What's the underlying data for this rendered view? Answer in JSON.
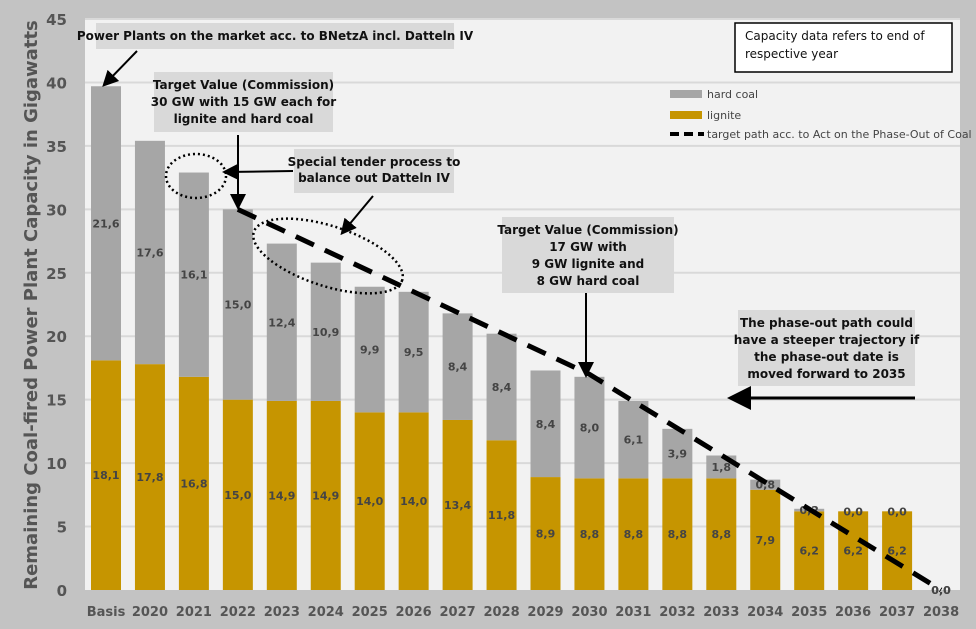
{
  "chart_data": {
    "type": "bar",
    "stacked": true,
    "ylabel": "Remaining Coal-fired Power Plant Capacity in Gigawatts",
    "ylim": [
      0,
      45
    ],
    "yticks": [
      0,
      5,
      10,
      15,
      20,
      25,
      30,
      35,
      40,
      45
    ],
    "grid": true,
    "legend_position": "top-right",
    "categories": [
      "Basis",
      "2020",
      "2021",
      "2022",
      "2023",
      "2024",
      "2025",
      "2026",
      "2027",
      "2028",
      "2029",
      "2030",
      "2031",
      "2032",
      "2033",
      "2034",
      "2035",
      "2036",
      "2037",
      "2038"
    ],
    "series": [
      {
        "name": "lignite",
        "color": "#c69500",
        "values": [
          18.1,
          17.8,
          16.8,
          15.0,
          14.9,
          14.9,
          14.0,
          14.0,
          13.4,
          11.8,
          8.9,
          8.8,
          8.8,
          8.8,
          8.8,
          7.9,
          6.2,
          6.2,
          6.2,
          0.0
        ],
        "labels": [
          "18,1",
          "17,8",
          "16,8",
          "15,0",
          "14,9",
          "14,9",
          "14,0",
          "14,0",
          "13,4",
          "11,8",
          "8,9",
          "8,8",
          "8,8",
          "8,8",
          "8,8",
          "7,9",
          "6,2",
          "6,2",
          "6,2",
          "0,0"
        ]
      },
      {
        "name": "hard coal",
        "color": "#a6a6a6",
        "values": [
          21.6,
          17.6,
          16.1,
          15.0,
          12.4,
          10.9,
          9.9,
          9.5,
          8.4,
          8.4,
          8.4,
          8.0,
          6.1,
          3.9,
          1.8,
          0.8,
          0.2,
          0.0,
          0.0,
          0.0
        ],
        "labels": [
          "21,6",
          "17,6",
          "16,1",
          "15,0",
          "12,4",
          "10,9",
          "9,9",
          "9,5",
          "8,4",
          "8,4",
          "8,4",
          "8,0",
          "6,1",
          "3,9",
          "1,8",
          "0,8",
          "0,2",
          "0,0",
          "0,0",
          "0,0"
        ]
      }
    ],
    "target_path": {
      "name": "target path acc. to Act on the Phase-Out of Coal",
      "points": [
        [
          "2022",
          30
        ],
        [
          "2030",
          17
        ],
        [
          "2038",
          0
        ]
      ]
    },
    "annotations": {
      "note": [
        "Capacity data refers to end of",
        "respective year"
      ],
      "bnetza": [
        "Power Plants on the market acc. to BNetzA incl. Datteln IV"
      ],
      "target30": [
        "Target Value (Commission)",
        "30 GW with 15 GW each for",
        "lignite and hard coal"
      ],
      "tender": [
        "Special tender process to",
        "balance out Datteln IV"
      ],
      "target17": [
        "Target Value (Commission)",
        "17 GW with",
        "9 GW lignite and",
        "8 GW hard coal"
      ],
      "phaseout": [
        "The phase-out path could",
        "have a steeper trajectory if",
        "the phase-out date is",
        "moved forward to 2035"
      ]
    }
  }
}
